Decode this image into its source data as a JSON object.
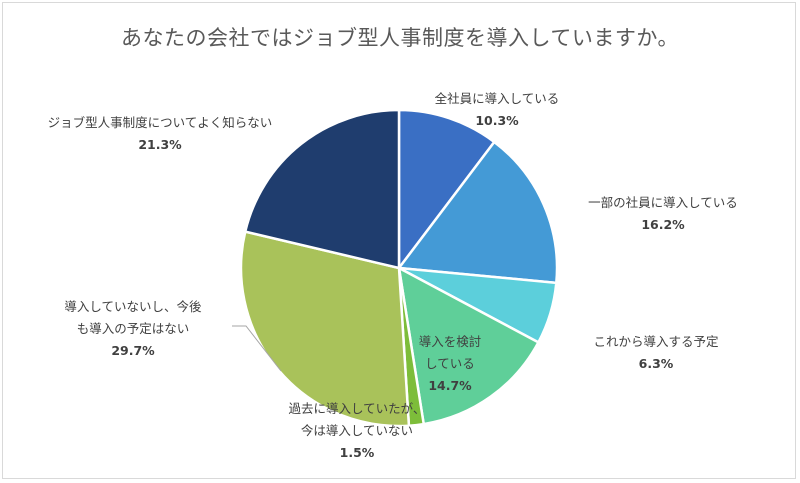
{
  "chart_data": {
    "type": "pie",
    "title": "あなたの会社ではジョブ型人事制度を導入していますか。",
    "slices": [
      {
        "label_lines": [
          "全社員に導入している"
        ],
        "value": 10.3,
        "value_label": "10.3%",
        "color": "#3a6fc4"
      },
      {
        "label_lines": [
          "一部の社員に導入している"
        ],
        "value": 16.2,
        "value_label": "16.2%",
        "color": "#449ad6"
      },
      {
        "label_lines": [
          "これから導入する予定"
        ],
        "value": 6.3,
        "value_label": "6.3%",
        "color": "#5ccfdb"
      },
      {
        "label_lines": [
          "導入を検討",
          "している"
        ],
        "value": 14.7,
        "value_label": "14.7%",
        "color": "#5fcf99"
      },
      {
        "label_lines": [
          "過去に導入していたが、",
          "今は導入していない"
        ],
        "value": 1.5,
        "value_label": "1.5%",
        "color": "#7dbd3a"
      },
      {
        "label_lines": [
          "導入していないし、今後",
          "も導入の予定はない"
        ],
        "value": 29.7,
        "value_label": "29.7%",
        "color": "#a9c25a"
      },
      {
        "label_lines": [
          "ジョブ型人事制度についてよく知らない"
        ],
        "value": 21.3,
        "value_label": "21.3%",
        "color": "#1f3d6e"
      }
    ]
  }
}
